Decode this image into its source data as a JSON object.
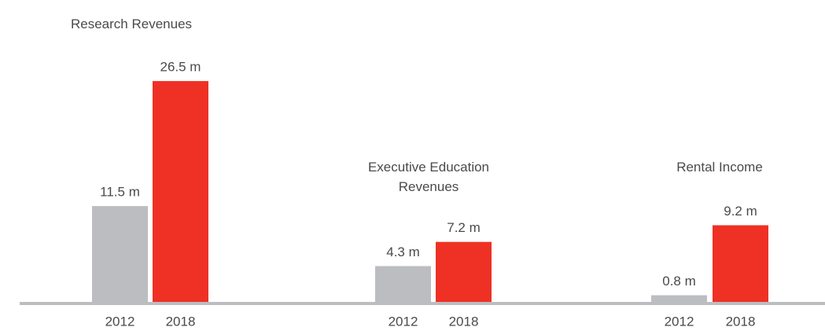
{
  "chart_data": {
    "type": "bar",
    "categories": [
      "Research Revenues",
      "Executive Education Revenues",
      "Rental Income"
    ],
    "series": [
      {
        "name": "2012",
        "color": "#bcbdc1",
        "values": [
          11.5,
          4.3,
          0.8
        ],
        "value_labels": [
          "11.5 m",
          "4.3 m",
          "0.8 m"
        ]
      },
      {
        "name": "2018",
        "color": "#ee3124",
        "values": [
          26.5,
          7.2,
          9.2
        ],
        "value_labels": [
          "26.5 m",
          "7.2 m",
          "9.2 m"
        ]
      }
    ]
  }
}
